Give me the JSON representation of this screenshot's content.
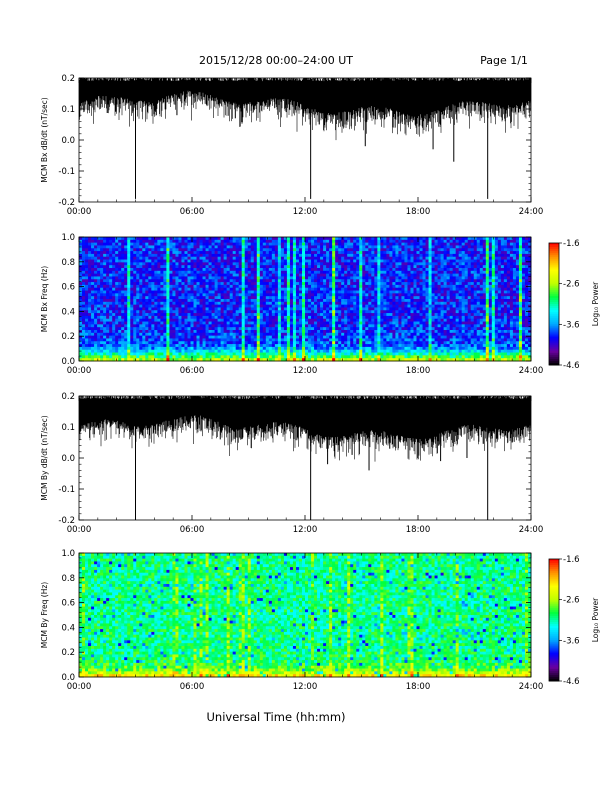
{
  "header": {
    "title": "2015/12/28  00:00–24:00 UT",
    "page": "Page 1/1"
  },
  "x_axis": {
    "label": "Universal Time (hh:mm)",
    "ticks": [
      "00:00",
      "06:00",
      "12:00",
      "18:00",
      "24:00"
    ],
    "range_hours": [
      0,
      24
    ]
  },
  "colorbar": {
    "label": "Log₁₀ Power",
    "ticks": [
      "-1.6",
      "-2.6",
      "-3.6",
      "-4.6"
    ],
    "range": [
      -4.6,
      -1.6
    ],
    "colors": [
      "#000000",
      "#6a00a0",
      "#0000ff",
      "#00a8ff",
      "#00ffff",
      "#00ff40",
      "#c0ff00",
      "#ffff00",
      "#ff9000",
      "#ff0000"
    ]
  },
  "chart_data": [
    {
      "type": "line",
      "id": "bx",
      "ylabel": "MCM Bx dB/dt (nT/sec)",
      "ylim": [
        -0.2,
        0.2
      ],
      "yticks": [
        "0.2",
        "0.1",
        "0.0",
        "-0.1",
        "-0.2"
      ],
      "baseline_range": [
        0.12,
        0.19
      ],
      "spikes": [
        {
          "t": 3.0,
          "y": -0.19
        },
        {
          "t": 5.2,
          "y": 0.08
        },
        {
          "t": 8.3,
          "y": 0.07
        },
        {
          "t": 11.0,
          "y": 0.09
        },
        {
          "t": 12.3,
          "y": -0.19
        },
        {
          "t": 13.0,
          "y": 0.08
        },
        {
          "t": 15.2,
          "y": -0.02
        },
        {
          "t": 16.1,
          "y": 0.07
        },
        {
          "t": 17.3,
          "y": 0.05
        },
        {
          "t": 18.8,
          "y": -0.03
        },
        {
          "t": 19.4,
          "y": 0.08
        },
        {
          "t": 19.9,
          "y": -0.07
        },
        {
          "t": 21.7,
          "y": -0.19
        }
      ],
      "color": "#000000"
    },
    {
      "type": "heatmap",
      "id": "bx-spec",
      "ylabel": "MCM Bx Freq (Hz)",
      "ylim": [
        0,
        1.0
      ],
      "yticks": [
        "1.0",
        "0.8",
        "0.6",
        "0.4",
        "0.2",
        "0.0"
      ],
      "xlim": [
        0,
        24
      ],
      "zlim": [
        -4.6,
        -1.6
      ]
    },
    {
      "type": "line",
      "id": "by",
      "ylabel": "MCM By dB/dt (nT/sec)",
      "ylim": [
        -0.2,
        0.2
      ],
      "yticks": [
        "0.2",
        "0.1",
        "0.0",
        "-0.1",
        "-0.2"
      ],
      "baseline_range": [
        0.1,
        0.19
      ],
      "spikes": [
        {
          "t": 3.0,
          "y": -0.2
        },
        {
          "t": 7.5,
          "y": 0.06
        },
        {
          "t": 10.2,
          "y": 0.07
        },
        {
          "t": 12.3,
          "y": -0.2
        },
        {
          "t": 13.2,
          "y": -0.02
        },
        {
          "t": 14.5,
          "y": 0.01
        },
        {
          "t": 15.4,
          "y": -0.04
        },
        {
          "t": 16.5,
          "y": 0.03
        },
        {
          "t": 19.2,
          "y": -0.01
        },
        {
          "t": 20.6,
          "y": 0.0
        },
        {
          "t": 21.7,
          "y": -0.2
        },
        {
          "t": 23.0,
          "y": 0.05
        }
      ],
      "color": "#000000"
    },
    {
      "type": "heatmap",
      "id": "by-spec",
      "ylabel": "MCM By Freq (Hz)",
      "ylim": [
        0,
        1.0
      ],
      "yticks": [
        "1.0",
        "0.8",
        "0.6",
        "0.4",
        "0.2",
        "0.0"
      ],
      "xlim": [
        0,
        24
      ],
      "zlim": [
        -4.6,
        -1.6
      ]
    }
  ]
}
